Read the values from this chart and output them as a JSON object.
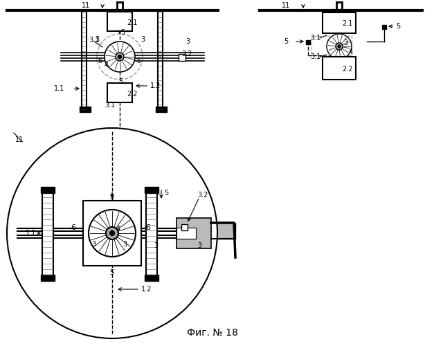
{
  "title": "Фиг. № 18",
  "bg_color": "#ffffff",
  "line_color": "#000000",
  "gray_color": "#888888",
  "light_gray": "#cccccc",
  "fig_width": 6.14,
  "fig_height": 5.0
}
